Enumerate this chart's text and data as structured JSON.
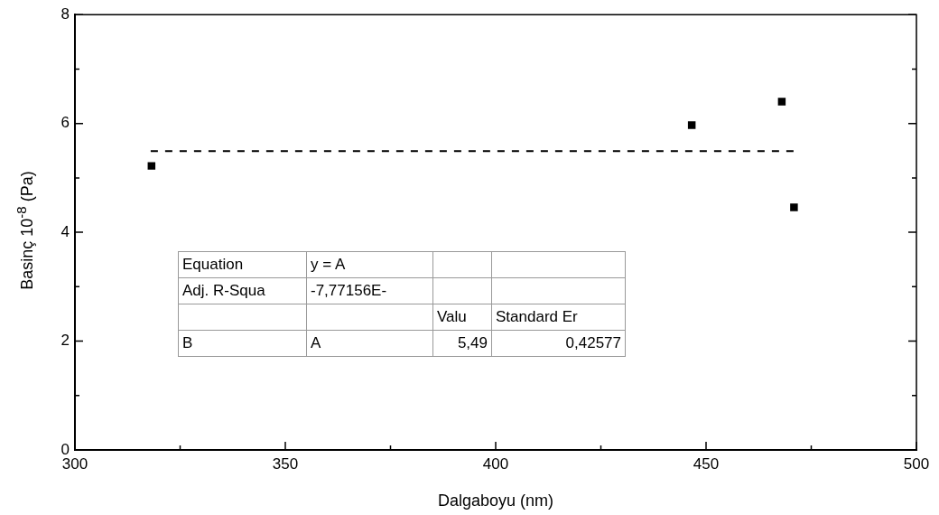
{
  "chart_data": {
    "type": "scatter",
    "xlabel": "Dalgaboyu (nm)",
    "ylabel": "Basinç 10$^{-8}$ (Pa)",
    "xlim": [
      300,
      500
    ],
    "xticks": [
      300,
      {
        "value": 325,
        "label": null
      },
      350,
      {
        "value": 375,
        "label": null
      },
      400,
      {
        "value": 425,
        "label": null
      },
      450,
      {
        "value": 475,
        "label": null
      },
      500
    ],
    "ylim": [
      0,
      8
    ],
    "yticks": [
      0,
      {
        "value": 1,
        "label": null
      },
      2,
      {
        "value": 3,
        "label": null
      },
      4,
      {
        "value": 5,
        "label": null
      },
      6,
      {
        "value": 7,
        "label": null
      },
      8
    ],
    "grid": false,
    "legend": false,
    "marker": "square",
    "series": [
      {
        "type": "scatter",
        "color": "#000000",
        "x": [
          318.2,
          446.6,
          468.0,
          470.9
        ],
        "values": [
          5.22,
          5.97,
          6.4,
          4.46
        ]
      },
      {
        "type": "line",
        "color": "#000000",
        "line_style": "dashed",
        "marker": "none",
        "x": [
          318,
          471
        ],
        "values": [
          5.49,
          5.49
        ]
      }
    ],
    "annotations": [
      "Equation",
      "y = A",
      "Adj. R-Squa",
      "-7,77156E-",
      "Valu",
      "Standard Er",
      "B",
      "A",
      "5,49",
      "0,42577"
    ]
  }
}
